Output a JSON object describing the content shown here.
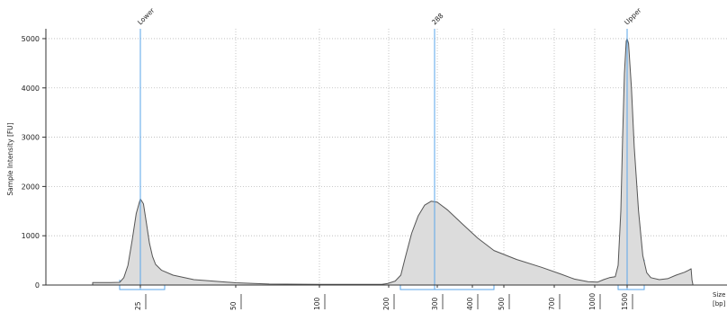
{
  "chart_data": {
    "type": "area",
    "title": "",
    "ylabel": "Sample Intensity [FU]",
    "xlabel_line1": "Size",
    "xlabel_line2": "[bp]",
    "ylim": [
      0,
      5200
    ],
    "y_ticks": [
      0,
      1000,
      2000,
      3000,
      4000,
      5000
    ],
    "x_ticks": [
      {
        "label": "25",
        "value": 25
      },
      {
        "label": "50",
        "value": 50
      },
      {
        "label": "100",
        "value": 100
      },
      {
        "label": "200",
        "value": 200
      },
      {
        "label": "300",
        "value": 300
      },
      {
        "label": "400",
        "value": 400
      },
      {
        "label": "500",
        "value": 500
      },
      {
        "label": "700",
        "value": 700
      },
      {
        "label": "1000",
        "value": 1000
      },
      {
        "label": "1500",
        "value": 1500
      }
    ],
    "grid": true,
    "colors": {
      "fill": "#dcdcdc",
      "line": "#555555",
      "marker": "#5aa6ea",
      "grid": "#b8b8b8",
      "axis": "#333333"
    },
    "peaks": [
      {
        "label": "Lower",
        "size": 25,
        "intensity": 1750
      },
      {
        "label": "288",
        "size": 288,
        "intensity": 1700
      },
      {
        "label": "Upper",
        "size": 1500,
        "intensity": 5000
      }
    ],
    "regions": [
      {
        "name": "Lower",
        "from": 20,
        "to": 33
      },
      {
        "name": "288",
        "from": 209,
        "to": 480
      },
      {
        "name": "Upper",
        "from": 1400,
        "to": 1620
      }
    ],
    "series": [
      {
        "points": [
          [
            17,
            50
          ],
          [
            19,
            50
          ],
          [
            20,
            55
          ],
          [
            21,
            150
          ],
          [
            22,
            400
          ],
          [
            23,
            900
          ],
          [
            24,
            1450
          ],
          [
            25,
            1750
          ],
          [
            26,
            1650
          ],
          [
            27,
            1250
          ],
          [
            28,
            850
          ],
          [
            29,
            580
          ],
          [
            30,
            420
          ],
          [
            32,
            300
          ],
          [
            35,
            200
          ],
          [
            40,
            110
          ],
          [
            50,
            45
          ],
          [
            70,
            20
          ],
          [
            100,
            15
          ],
          [
            150,
            12
          ],
          [
            190,
            12
          ],
          [
            198,
            30
          ],
          [
            205,
            80
          ],
          [
            210,
            200
          ],
          [
            220,
            550
          ],
          [
            235,
            1050
          ],
          [
            250,
            1400
          ],
          [
            265,
            1620
          ],
          [
            280,
            1700
          ],
          [
            300,
            1680
          ],
          [
            330,
            1520
          ],
          [
            370,
            1250
          ],
          [
            420,
            950
          ],
          [
            480,
            700
          ],
          [
            550,
            520
          ],
          [
            650,
            360
          ],
          [
            750,
            220
          ],
          [
            850,
            120
          ],
          [
            950,
            70
          ],
          [
            1050,
            60
          ],
          [
            1150,
            110
          ],
          [
            1250,
            150
          ],
          [
            1350,
            170
          ],
          [
            1400,
            400
          ],
          [
            1430,
            1500
          ],
          [
            1450,
            3000
          ],
          [
            1470,
            4300
          ],
          [
            1490,
            4950
          ],
          [
            1500,
            5000
          ],
          [
            1510,
            4900
          ],
          [
            1530,
            4000
          ],
          [
            1550,
            2800
          ],
          [
            1580,
            1500
          ],
          [
            1610,
            600
          ],
          [
            1650,
            250
          ],
          [
            1700,
            150
          ],
          [
            1800,
            110
          ],
          [
            1900,
            130
          ],
          [
            2000,
            200
          ],
          [
            2100,
            260
          ],
          [
            2150,
            300
          ],
          [
            2180,
            330
          ],
          [
            2190,
            100
          ],
          [
            2200,
            20
          ]
        ]
      }
    ]
  }
}
